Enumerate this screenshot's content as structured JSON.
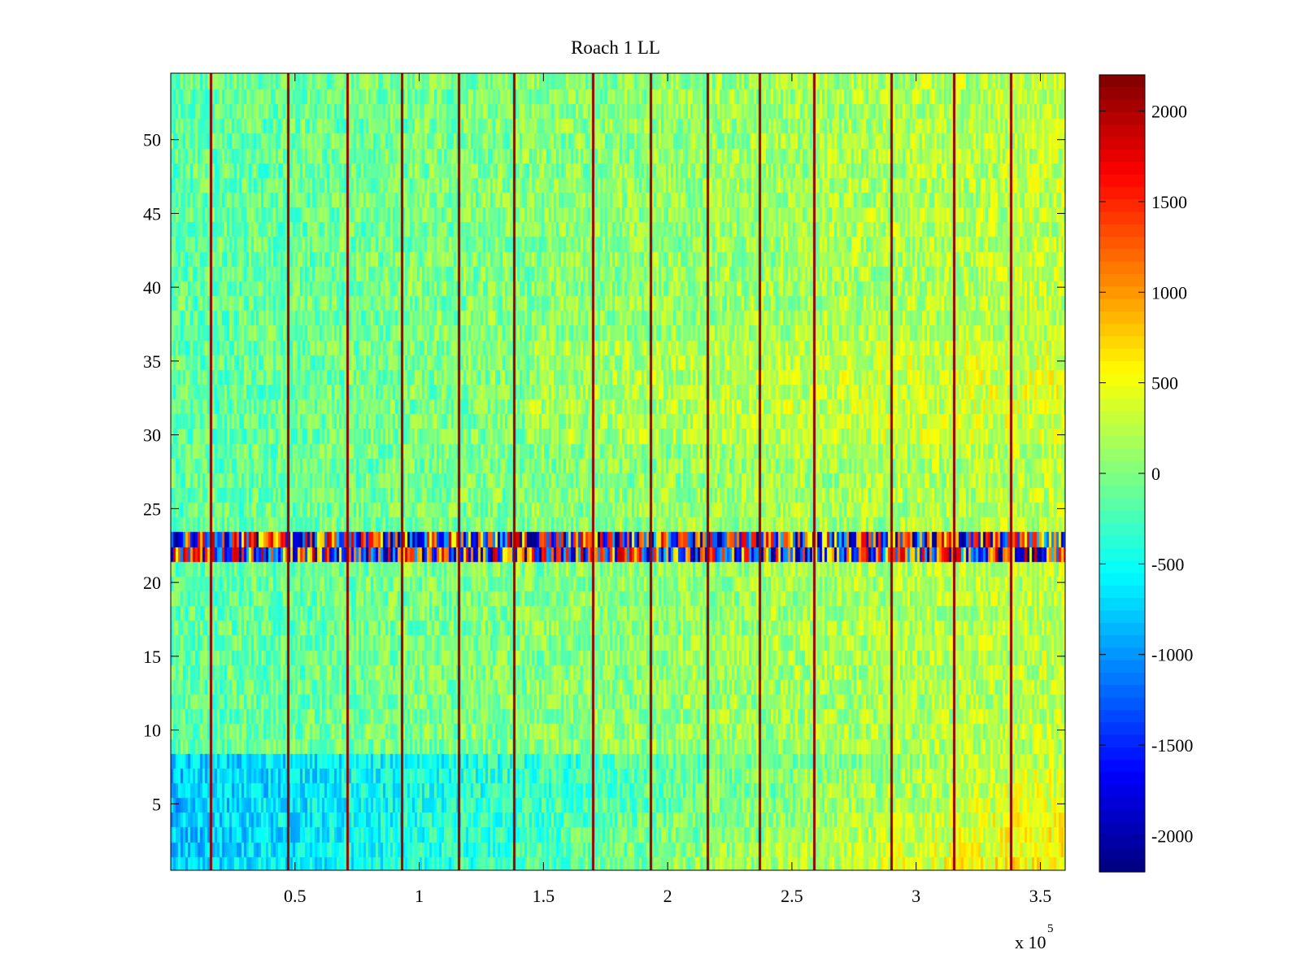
{
  "chart_data": {
    "type": "heatmap",
    "title": "Roach 1 LL",
    "xlabel": "",
    "ylabel": "",
    "x_multiplier_label": "x 10",
    "x_multiplier_exponent": "5",
    "xlim": [
      0,
      360000
    ],
    "ylim": [
      0.5,
      54.5
    ],
    "rows": 54,
    "x_ticks": [
      {
        "value": 50000,
        "label": "0.5"
      },
      {
        "value": 100000,
        "label": "1"
      },
      {
        "value": 150000,
        "label": "1.5"
      },
      {
        "value": 200000,
        "label": "2"
      },
      {
        "value": 250000,
        "label": "2.5"
      },
      {
        "value": 300000,
        "label": "3"
      },
      {
        "value": 350000,
        "label": "3.5"
      }
    ],
    "y_ticks": [
      {
        "value": 5,
        "label": "5"
      },
      {
        "value": 10,
        "label": "10"
      },
      {
        "value": 15,
        "label": "15"
      },
      {
        "value": 20,
        "label": "20"
      },
      {
        "value": 25,
        "label": "25"
      },
      {
        "value": 30,
        "label": "30"
      },
      {
        "value": 35,
        "label": "35"
      },
      {
        "value": 40,
        "label": "40"
      },
      {
        "value": 45,
        "label": "45"
      },
      {
        "value": 50,
        "label": "50"
      }
    ],
    "colorbar": {
      "colormap": "jet",
      "clim": [
        -2200,
        2200
      ],
      "ticks": [
        {
          "value": 2000,
          "label": "2000"
        },
        {
          "value": 1500,
          "label": "1500"
        },
        {
          "value": 1000,
          "label": "1000"
        },
        {
          "value": 500,
          "label": "500"
        },
        {
          "value": 0,
          "label": "0"
        },
        {
          "value": -500,
          "label": "-500"
        },
        {
          "value": -1000,
          "label": "-1000"
        },
        {
          "value": -1500,
          "label": "-1500"
        },
        {
          "value": -2000,
          "label": "-2000"
        }
      ]
    },
    "stripe_x": [
      16000,
      47000,
      71000,
      93000,
      116000,
      138000,
      170000,
      193000,
      216000,
      237000,
      259000,
      290000,
      315000,
      338000
    ],
    "high_variance_rows": [
      22,
      23
    ],
    "description_values": {
      "background_level": -150,
      "late_time_level_low_rows": 500,
      "early_low_rows_level": -900,
      "stripe_level": 2100
    }
  }
}
